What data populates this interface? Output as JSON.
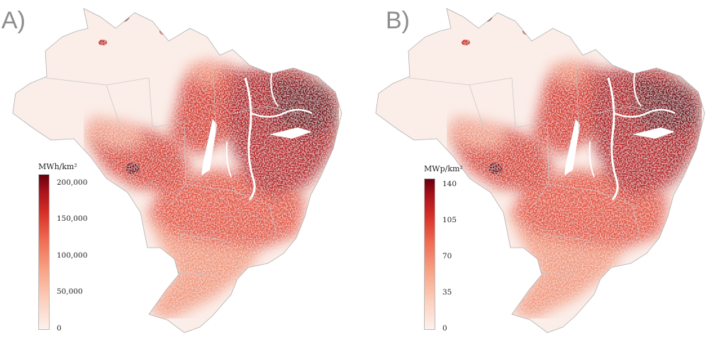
{
  "panels": [
    {
      "letter": "A)",
      "legend": {
        "title": "MWh/km²",
        "ticks": [
          "200,000",
          "150,000",
          "100,000",
          "50,000",
          "0"
        ]
      }
    },
    {
      "letter": "B)",
      "legend": {
        "title": "MWp/km²",
        "ticks": [
          "140",
          "105",
          "70",
          "35",
          "0"
        ]
      }
    }
  ],
  "colors": {
    "scale_low": "#fdf1ec",
    "scale_mid": "#ef6b52",
    "scale_high": "#67000d",
    "background_region": "#fbeee9",
    "borders": "#c9c9c9"
  }
}
